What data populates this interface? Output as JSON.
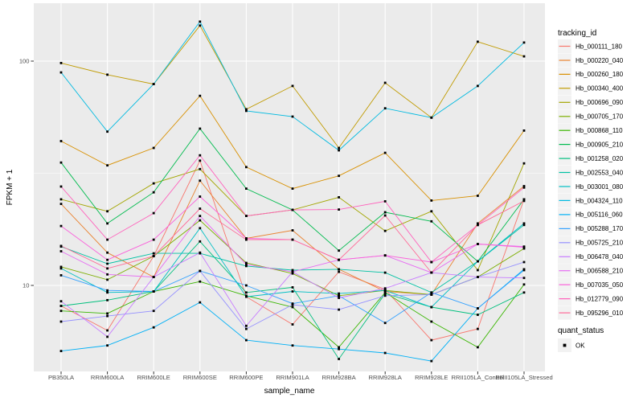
{
  "figure": {
    "background": "#FFFFFF",
    "panel_bg": "#EBEBEB",
    "grid_color": "#FFFFFF",
    "tick_text_color": "#4D4D4D",
    "axis_title_color": "#000000",
    "tick_mark_color": "#333333",
    "legend_key_bg": "#F2F2F2",
    "point_color": "#000000"
  },
  "legend": {
    "tracking_title": "tracking_id",
    "quant_title": "quant_status",
    "quant_items": [
      {
        "label": "OK",
        "marker": "black-square"
      }
    ]
  },
  "chart_data": {
    "type": "line",
    "title": "",
    "xlabel": "sample_name",
    "ylabel": "FPKM + 1",
    "log_scale_y": true,
    "ylim": [
      4.1,
      181
    ],
    "y_ticks": [
      10,
      100
    ],
    "y_tick_labels": [
      "10",
      "100"
    ],
    "y_minor_ticks": [
      31.62
    ],
    "grid": true,
    "legend_position": "right",
    "point_shape": "square",
    "point_color": "#000000",
    "quant_status": "OK",
    "categories": [
      "PB350LA",
      "RRIM600LA",
      "RRIM600LE",
      "RRIM600SE",
      "RRIM600PE",
      "RRIM901LA",
      "RRIM928BA",
      "RRIM928LA",
      "RRIM928LE",
      "RRII105LA_Control",
      "RRII105LA_Stressed"
    ],
    "series": [
      {
        "name": "Hb_000111_180",
        "color": "#F8766D",
        "values": [
          8.1,
          6.3,
          13.5,
          36,
          8.9,
          6.7,
          11.5,
          9.6,
          5.7,
          6.4,
          24.2
        ]
      },
      {
        "name": "Hb_000220_040",
        "color": "#EA8331",
        "values": [
          23.1,
          14,
          10.9,
          29.3,
          16.2,
          17.6,
          11.8,
          9.4,
          9.1,
          18.9,
          27.7
        ]
      },
      {
        "name": "Hb_000260_180",
        "color": "#D89000",
        "values": [
          44,
          34.3,
          41,
          70,
          33.7,
          27,
          30.8,
          39,
          23.9,
          25.1,
          49
        ]
      },
      {
        "name": "Hb_000340_400",
        "color": "#C09B00",
        "values": [
          98,
          87,
          79,
          144,
          61,
          77.5,
          41,
          80,
          56,
          122,
          105
        ]
      },
      {
        "name": "Hb_000696_090",
        "color": "#A3A500",
        "values": [
          24.2,
          21.4,
          28.5,
          33,
          20.4,
          21.7,
          24.7,
          17.5,
          21.4,
          11.7,
          35
        ]
      },
      {
        "name": "Hb_000705_170",
        "color": "#7CAE00",
        "values": [
          12.1,
          10.6,
          13.5,
          19.5,
          12.6,
          11.3,
          9,
          9.5,
          9.1,
          10.9,
          14.6
        ]
      },
      {
        "name": "Hb_000868_110",
        "color": "#39B600",
        "values": [
          7.7,
          7.5,
          9.4,
          10.4,
          9,
          8,
          5.3,
          9.3,
          6.9,
          5.3,
          10.1
        ]
      },
      {
        "name": "Hb_000905_210",
        "color": "#00BB4E",
        "values": [
          35.3,
          18.9,
          26,
          50,
          27,
          21.7,
          14.3,
          21.2,
          19.3,
          12.8,
          24.2
        ]
      },
      {
        "name": "Hb_001258_020",
        "color": "#00BF7D",
        "values": [
          8.1,
          8.6,
          9.4,
          15.7,
          9.3,
          9.8,
          4.7,
          9.2,
          8,
          7.4,
          9.3
        ]
      },
      {
        "name": "Hb_002553_040",
        "color": "#00C1A3",
        "values": [
          14.9,
          12.5,
          13.9,
          13.9,
          12.2,
          11.7,
          11.8,
          11.4,
          9.3,
          12.8,
          18.6
        ]
      },
      {
        "name": "Hb_003001_080",
        "color": "#00BFC4",
        "values": [
          11.9,
          9.3,
          9.4,
          18,
          8.9,
          9.4,
          9.2,
          9.5,
          8,
          12.8,
          18.9
        ]
      },
      {
        "name": "Hb_004324_110",
        "color": "#00BAE0",
        "values": [
          89,
          48.5,
          79,
          150,
          60,
          56.6,
          40,
          61.6,
          56,
          77.5,
          121
        ]
      },
      {
        "name": "Hb_005116_060",
        "color": "#00B0F6",
        "values": [
          5.1,
          5.4,
          6.5,
          8.4,
          5.7,
          5.4,
          5.2,
          5,
          4.6,
          7.9,
          11.8
        ]
      },
      {
        "name": "Hb_005288_170",
        "color": "#35A2FF",
        "values": [
          11.1,
          9.5,
          9.4,
          11.6,
          10,
          8.3,
          9,
          6.8,
          9.3,
          7.9,
          11.7
        ]
      },
      {
        "name": "Hb_005725_210",
        "color": "#9590FF",
        "values": [
          6.9,
          7.3,
          7.7,
          11.6,
          6.4,
          8.2,
          7.8,
          9,
          9.1,
          10.9,
          12.7
        ]
      },
      {
        "name": "Hb_006478_040",
        "color": "#C77CFF",
        "values": [
          8.5,
          5.9,
          10.9,
          14,
          6.6,
          11.5,
          8.8,
          9.7,
          11.4,
          10.9,
          10.8
        ]
      },
      {
        "name": "Hb_006588_210",
        "color": "#E76BF3",
        "values": [
          14.2,
          11.2,
          10.9,
          20.4,
          12.4,
          11.5,
          13,
          13.6,
          11.4,
          15.3,
          14.9
        ]
      },
      {
        "name": "Hb_007035_050",
        "color": "#FA62DB",
        "values": [
          18.4,
          13,
          16,
          24.9,
          16.2,
          16,
          13,
          13.6,
          12.7,
          15.3,
          14.8
        ]
      },
      {
        "name": "Hb_012779_090",
        "color": "#FF62BC",
        "values": [
          27.6,
          16,
          21,
          38,
          20.4,
          21.7,
          21.8,
          23.7,
          12.7,
          18.6,
          27.3
        ]
      },
      {
        "name": "Hb_095296_010",
        "color": "#FF6A98",
        "values": [
          15,
          11.9,
          13.5,
          22,
          16,
          16,
          13,
          20.5,
          11.4,
          18.6,
          23.8
        ]
      }
    ]
  }
}
